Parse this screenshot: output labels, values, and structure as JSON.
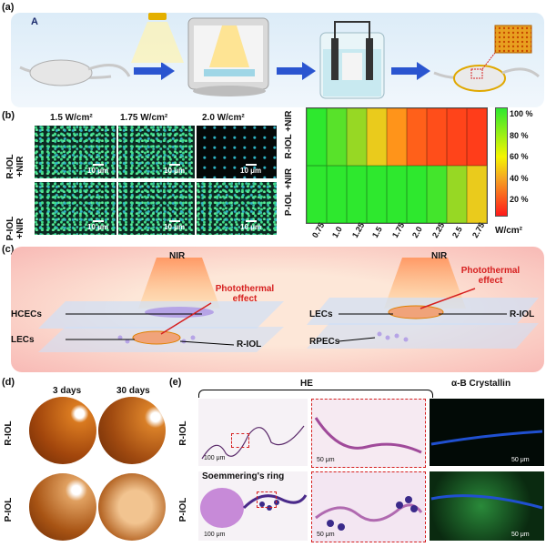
{
  "panels": {
    "a": "(a)",
    "a_sub": "A",
    "b": "(b)",
    "c": "(c)",
    "d": "(d)",
    "e": "(e)"
  },
  "panel_b": {
    "col_headers": [
      "1.5 W/cm²",
      "1.75 W/cm²",
      "2.0 W/cm²"
    ],
    "row_labels": [
      "R-IOL +NIR",
      "P-IOL +NIR"
    ],
    "scalebar": "10 μm"
  },
  "chart_data": {
    "type": "heatmap",
    "rows": [
      "R-IOL +NIR",
      "P-IOL +NIR"
    ],
    "x": [
      "0.75",
      "1.0",
      "1.25",
      "1.5",
      "1.75",
      "2.0",
      "2.25",
      "2.5",
      "2.75"
    ],
    "xlabel": "W/cm²",
    "values": [
      [
        100,
        90,
        75,
        55,
        35,
        20,
        15,
        12,
        10
      ],
      [
        100,
        100,
        100,
        100,
        100,
        100,
        95,
        75,
        55
      ]
    ],
    "colorbar": {
      "ticks": [
        "100 %",
        "80 %",
        "60 %",
        "40 %",
        "20 %"
      ],
      "tick_values": [
        100,
        80,
        60,
        40,
        20
      ],
      "range": [
        0,
        100
      ]
    },
    "colors": {
      "high": "#2ee82e",
      "mid": "#f5a623",
      "low": "#ff1a1a"
    }
  },
  "panel_c": {
    "left": {
      "nir": "NIR",
      "effect": "Photothermal effect",
      "labels": [
        "HCECs",
        "LECs",
        "R-IOL"
      ]
    },
    "right": {
      "nir": "NIR",
      "effect": "Photothermal effect",
      "labels": [
        "LECs",
        "R-IOL",
        "RPECs"
      ]
    }
  },
  "panel_d": {
    "col_headers": [
      "3 days",
      "30 days"
    ],
    "row_labels": [
      "R-IOL",
      "P-IOL"
    ]
  },
  "panel_e": {
    "he_title": "HE",
    "crystallin_title": "α-B Crystallin",
    "row_labels": [
      "R-IOL",
      "P-IOL"
    ],
    "soemmering": "Soemmering's ring",
    "scalebars": {
      "s100": "100 μm",
      "s50": "50 μm"
    }
  }
}
